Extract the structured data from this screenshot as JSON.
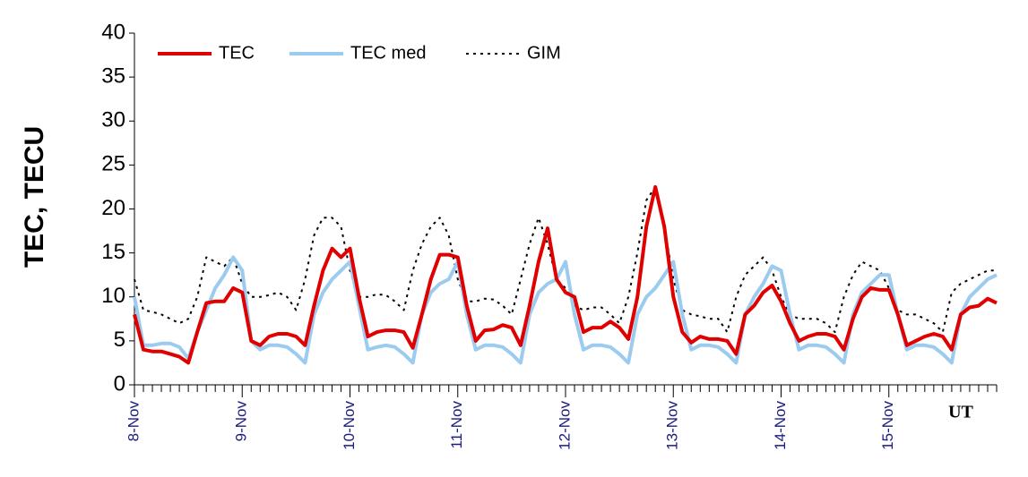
{
  "chart_data": {
    "type": "line",
    "ylabel": "TEC, TECU",
    "xlabel": "UT",
    "categories": [
      "8-Nov",
      null,
      null,
      null,
      null,
      null,
      null,
      null,
      null,
      null,
      null,
      null,
      "9-Nov",
      null,
      null,
      null,
      null,
      null,
      null,
      null,
      null,
      null,
      null,
      null,
      "10-Nov",
      null,
      null,
      null,
      null,
      null,
      null,
      null,
      null,
      null,
      null,
      null,
      "11-Nov",
      null,
      null,
      null,
      null,
      null,
      null,
      null,
      null,
      null,
      null,
      null,
      "12-Nov",
      null,
      null,
      null,
      null,
      null,
      null,
      null,
      null,
      null,
      null,
      null,
      "13-Nov",
      null,
      null,
      null,
      null,
      null,
      null,
      null,
      null,
      null,
      null,
      null,
      "14-Nov",
      null,
      null,
      null,
      null,
      null,
      null,
      null,
      null,
      null,
      null,
      null,
      "15-Nov",
      null,
      null,
      null,
      null,
      null,
      null,
      null,
      null,
      null,
      null,
      null,
      null
    ],
    "series": [
      {
        "name": "TEC",
        "color": "#e00000",
        "style": "solid",
        "width": 4,
        "values": [
          8,
          4,
          3.8,
          3.8,
          3.5,
          3.2,
          2.5,
          6,
          9.3,
          9.5,
          9.5,
          11,
          10.5,
          5,
          4.5,
          5.5,
          5.8,
          5.8,
          5.5,
          4.5,
          9,
          13,
          15.5,
          14.5,
          15.5,
          10,
          5.5,
          6,
          6.2,
          6.2,
          6,
          4.2,
          8,
          12,
          14.8,
          14.8,
          14.5,
          9,
          5,
          6.2,
          6.3,
          6.8,
          6.5,
          4.5,
          9,
          14,
          17.8,
          12,
          10.5,
          10,
          6,
          6.5,
          6.5,
          7.2,
          6.5,
          5.2,
          10,
          18,
          22.5,
          18,
          10,
          6,
          4.8,
          5.5,
          5.2,
          5.2,
          5,
          3.5,
          8,
          9,
          10.5,
          11.3,
          9.5,
          7,
          5,
          5.5,
          5.8,
          5.8,
          5.5,
          4,
          7.5,
          10,
          11,
          10.8,
          10.8,
          8,
          4.5,
          5,
          5.5,
          5.8,
          5.5,
          4,
          8,
          8.8,
          9,
          9.8,
          9.3
        ]
      },
      {
        "name": "TEC med",
        "color": "#9ccbf0",
        "style": "solid",
        "width": 4,
        "values": [
          10,
          4.5,
          4.5,
          4.7,
          4.7,
          4.3,
          3,
          6,
          8.5,
          11,
          12.5,
          14.5,
          13,
          5,
          4,
          4.5,
          4.5,
          4.3,
          3.5,
          2.5,
          8,
          10.5,
          12,
          13,
          14,
          9,
          4,
          4.3,
          4.5,
          4.3,
          3.5,
          2.5,
          8,
          10.5,
          11.5,
          12,
          14,
          8,
          4,
          4.5,
          4.5,
          4.3,
          3.5,
          2.5,
          8,
          10.5,
          11.5,
          12,
          14,
          8,
          4,
          4.5,
          4.5,
          4.3,
          3.5,
          2.5,
          8,
          10,
          11,
          12.5,
          14,
          8,
          4,
          4.5,
          4.5,
          4.3,
          3.5,
          2.5,
          8,
          10,
          11.5,
          13.5,
          13,
          8,
          4,
          4.5,
          4.5,
          4.3,
          3.5,
          2.5,
          8,
          10.5,
          11.5,
          12.5,
          12.5,
          8,
          4,
          4.5,
          4.5,
          4.3,
          3.5,
          2.5,
          8,
          10,
          11,
          12,
          12.5
        ]
      },
      {
        "name": "GIM",
        "color": "#000000",
        "style": "dotted",
        "width": 2,
        "values": [
          12,
          8.5,
          8.3,
          8,
          7.5,
          7,
          7.5,
          10,
          14.5,
          14,
          13.5,
          14.5,
          11.5,
          10,
          10,
          10.2,
          10.5,
          10,
          8.5,
          12,
          17,
          19,
          19,
          18,
          13,
          10,
          10,
          10.3,
          10.2,
          9.5,
          8.5,
          13,
          16,
          18,
          19,
          17,
          12,
          9.5,
          9.5,
          9.8,
          9.7,
          9,
          8,
          12,
          16,
          19,
          16,
          12,
          11,
          9,
          8.5,
          8.8,
          8.8,
          8,
          7,
          10,
          15,
          21,
          22.5,
          18,
          12,
          8.5,
          8,
          7.8,
          7.5,
          7.5,
          6,
          10,
          12.5,
          13.5,
          14.5,
          13,
          10,
          8,
          7.5,
          7.5,
          7.5,
          7,
          6,
          10,
          12.5,
          14,
          13.5,
          13,
          11,
          8.5,
          8,
          8,
          7.5,
          7,
          6,
          10.5,
          11.5,
          12,
          12.5,
          13,
          13
        ]
      }
    ],
    "ylim": [
      0,
      40
    ],
    "yticks": [
      0,
      5,
      10,
      15,
      20,
      25,
      30,
      35,
      40
    ],
    "legend": "top-left"
  }
}
